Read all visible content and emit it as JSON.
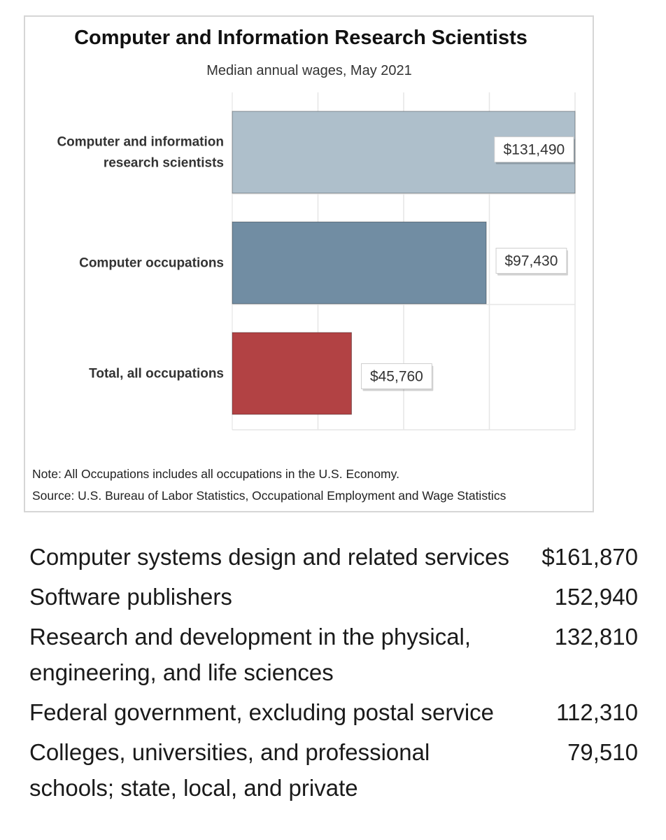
{
  "chart_data": {
    "type": "bar",
    "orientation": "horizontal",
    "title": "Computer and Information Research Scientists",
    "subtitle": "Median annual wages, May 2021",
    "categories": [
      "Computer and information research scientists",
      "Computer occupations",
      "Total, all occupations"
    ],
    "category_lines": [
      [
        "Computer and information",
        "research scientists"
      ],
      [
        "Computer occupations"
      ],
      [
        "Total, all occupations"
      ]
    ],
    "values": [
      131490,
      97430,
      45760
    ],
    "value_labels": [
      "$131,490",
      "$97,430",
      "$45,760"
    ],
    "colors": [
      "#aebfcb",
      "#718da3",
      "#b24244"
    ],
    "xlim": [
      0,
      131490
    ],
    "grid": true,
    "notes": [
      "Note: All Occupations includes all occupations in the U.S. Economy.",
      "Source: U.S. Bureau of Labor Statistics, Occupational Employment and Wage Statistics"
    ]
  },
  "industries": [
    {
      "name": "Computer systems design and related services",
      "wage": "$161,870"
    },
    {
      "name": "Software publishers",
      "wage": "152,940"
    },
    {
      "name": "Research and development in the physical, engineering, and life sciences",
      "wage": "132,810"
    },
    {
      "name": "Federal government, excluding postal service",
      "wage": "112,310"
    },
    {
      "name": "Colleges, universities, and professional schools; state, local, and private",
      "wage": "79,510"
    }
  ]
}
